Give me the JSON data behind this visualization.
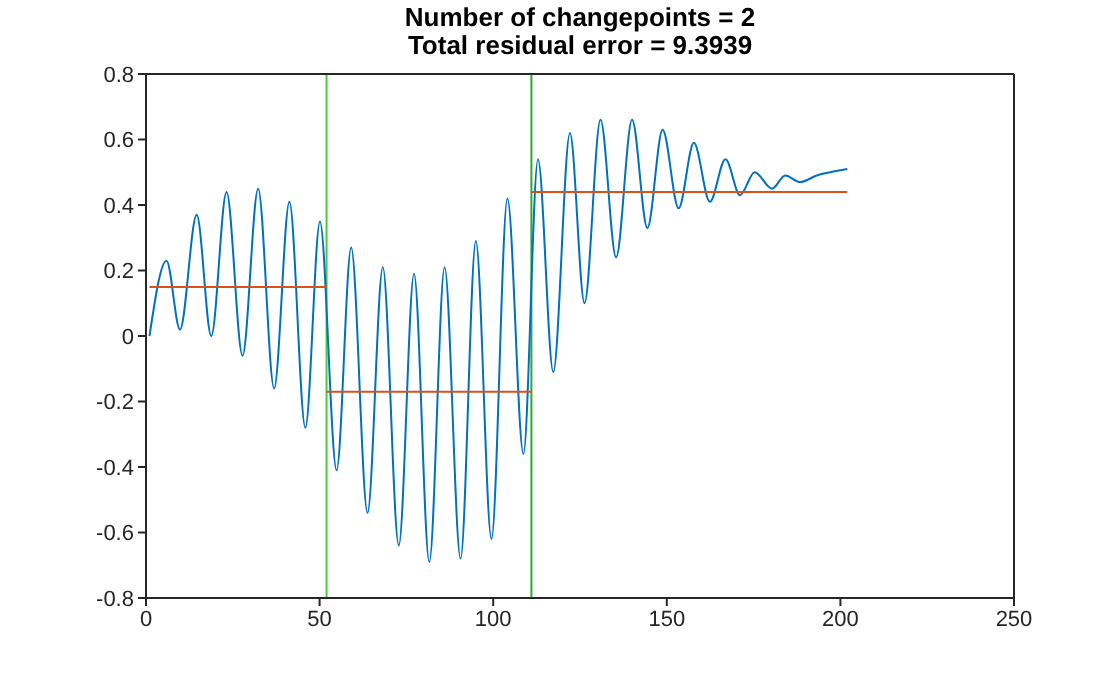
{
  "chart_data": {
    "type": "line",
    "title": "Number of changepoints = 2",
    "subtitle": "Total residual error = 9.3939",
    "xlim": [
      0,
      250
    ],
    "xticks": [
      0,
      50,
      100,
      150,
      200,
      250
    ],
    "ylim": [
      -0.8,
      0.8
    ],
    "yticks": [
      -0.8,
      -0.6,
      -0.4,
      -0.2,
      0,
      0.2,
      0.4,
      0.6,
      0.8
    ],
    "grid": false,
    "marker": "none",
    "line_style": "solid",
    "series": [
      {
        "color": "#0072bd",
        "x": [
          1,
          5.9,
          9.8,
          14.6,
          18.8,
          23.2,
          27.8,
          32.3,
          36.9,
          41.3,
          45.9,
          50.1,
          54.9,
          59.1,
          63.8,
          68.2,
          72.8,
          77.2,
          81.6,
          86,
          90.6,
          95,
          99.5,
          104.1,
          108.7,
          112.9,
          117.3,
          122.1,
          126.3,
          130.9,
          135.4,
          140,
          144.4,
          148.8,
          153.4,
          157.8,
          162.4,
          166.9,
          171.1,
          175.3,
          180.3,
          184.1,
          188.4,
          193.2,
          197,
          202
        ],
        "values": [
          0,
          0.23,
          0.02,
          0.37,
          0,
          0.44,
          -0.06,
          0.45,
          -0.16,
          0.41,
          -0.28,
          0.35,
          -0.41,
          0.27,
          -0.54,
          0.21,
          -0.64,
          0.19,
          -0.69,
          0.21,
          -0.68,
          0.29,
          -0.62,
          0.42,
          -0.36,
          0.54,
          -0.11,
          0.62,
          0.1,
          0.66,
          0.24,
          0.66,
          0.33,
          0.63,
          0.39,
          0.59,
          0.41,
          0.54,
          0.43,
          0.5,
          0.45,
          0.49,
          0.47,
          0.49,
          0.5,
          0.51
        ]
      },
      {
        "color": "#d95319",
        "x": [
          1,
          52
        ],
        "values": [
          0.15,
          0.15
        ]
      },
      {
        "color": "#d95319",
        "x": [
          52,
          111
        ],
        "values": [
          -0.17,
          -0.17
        ]
      },
      {
        "color": "#d95319",
        "x": [
          111,
          202
        ],
        "values": [
          0.44,
          0.44
        ]
      }
    ],
    "ref_lines": [
      {
        "axis": "x",
        "value": 52,
        "color": "#4dc83c"
      },
      {
        "axis": "x",
        "value": 111,
        "color": "#2ea82e"
      }
    ]
  }
}
